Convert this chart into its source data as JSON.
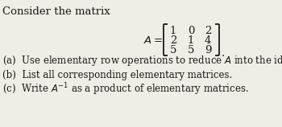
{
  "title_text": "Consider the matrix",
  "matrix_rows": [
    [
      "1",
      "0",
      "2"
    ],
    [
      "2",
      "1",
      "4"
    ],
    [
      "5",
      "5",
      "9"
    ]
  ],
  "items": [
    "(a)  Use elementary row operations to reduce $A$ into the identity matrix $I$.",
    "(b)  List all corresponding elementary matrices.",
    "(c)  Write $A^{-1}$ as a product of elementary matrices."
  ],
  "bg_color": "#f0ede6",
  "text_color": "#1a1a1a",
  "font_size_title": 9.5,
  "font_size_body": 8.5,
  "font_size_matrix": 9.5
}
